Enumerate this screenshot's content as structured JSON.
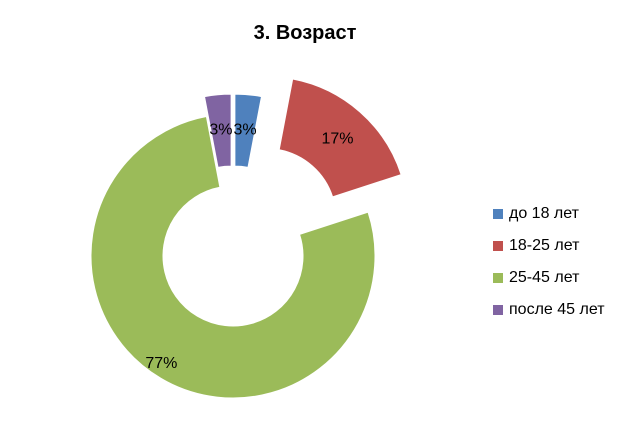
{
  "chart_data": {
    "type": "pie",
    "title": "3. Возраст",
    "categories": [
      "до 18 лет",
      "18-25 лет",
      "25-45 лет",
      "после 45 лет"
    ],
    "values": [
      3,
      17,
      77,
      3
    ],
    "labels": [
      "3%",
      "17%",
      "77%",
      "3%"
    ],
    "colors": [
      "#4F81BD",
      "#C0504D",
      "#9BBB59",
      "#8064A2"
    ],
    "donut": true,
    "exploded": true,
    "legend_position": "right"
  }
}
